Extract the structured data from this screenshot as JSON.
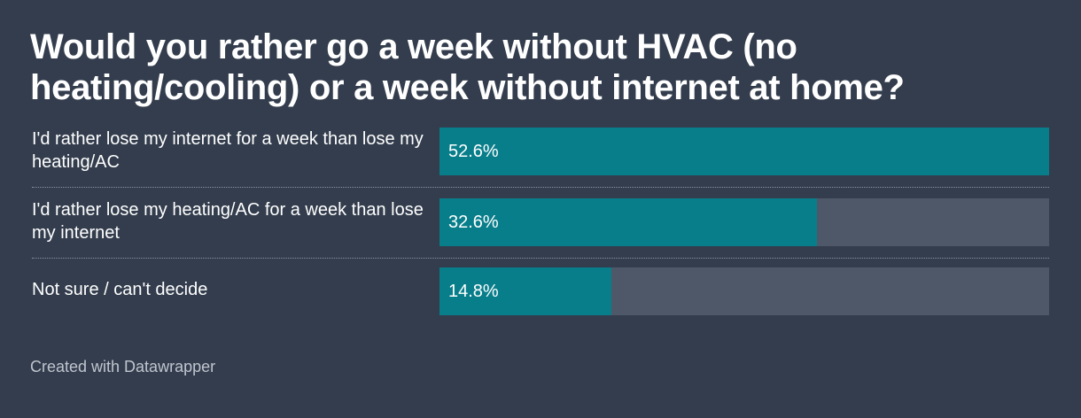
{
  "chart_data": {
    "type": "bar",
    "title": "Would you rather go a week without HVAC (no heating/cooling) or a week without internet at home?",
    "categories": [
      "I'd rather lose my internet for a week than lose my heating/AC",
      "I'd rather lose my heating/AC for a week than lose my internet",
      "Not sure / can't decide"
    ],
    "values": [
      52.6,
      32.6,
      14.8
    ],
    "value_labels": [
      "52.6%",
      "32.6%",
      "14.8%"
    ],
    "xlim": [
      0,
      52.6
    ],
    "grid": false,
    "colors": {
      "bar": "#087e8b",
      "track": "#4f5868",
      "background": "#333d4d"
    }
  },
  "footer": {
    "credit": "Created with Datawrapper"
  }
}
